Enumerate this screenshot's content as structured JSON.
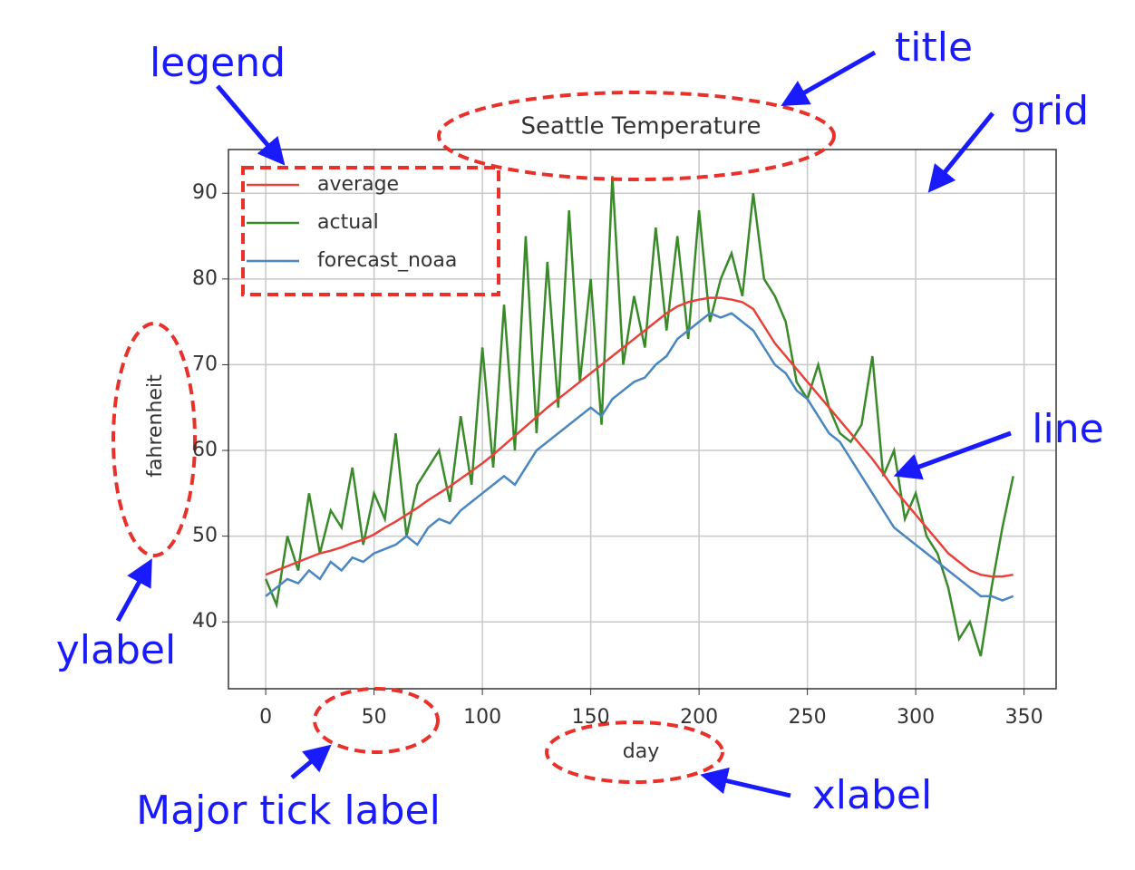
{
  "chart_data": {
    "type": "line",
    "title": "Seattle Temperature",
    "xlabel": "day",
    "ylabel": "fahrenheit",
    "x": [
      0,
      5,
      10,
      15,
      20,
      25,
      30,
      35,
      40,
      45,
      50,
      55,
      60,
      65,
      70,
      75,
      80,
      85,
      90,
      95,
      100,
      105,
      110,
      115,
      120,
      125,
      130,
      135,
      140,
      145,
      150,
      155,
      160,
      165,
      170,
      175,
      180,
      185,
      190,
      195,
      200,
      205,
      210,
      215,
      220,
      225,
      230,
      235,
      240,
      245,
      250,
      255,
      260,
      265,
      270,
      275,
      280,
      285,
      290,
      295,
      300,
      305,
      310,
      315,
      320,
      325,
      330,
      335,
      340,
      345
    ],
    "series": [
      {
        "name": "average",
        "color": "#e8413a",
        "values": [
          45.5,
          46,
          46.5,
          47,
          47.5,
          48,
          48.3,
          48.7,
          49.2,
          49.6,
          50.2,
          51,
          51.7,
          52.5,
          53.3,
          54.2,
          55,
          55.8,
          56.7,
          57.6,
          58.5,
          59.5,
          60.6,
          61.7,
          62.8,
          63.9,
          65,
          66,
          67,
          68,
          69,
          70,
          71,
          72,
          73,
          74,
          75,
          76,
          76.8,
          77.3,
          77.6,
          77.8,
          77.8,
          77.6,
          77.3,
          76.5,
          74.5,
          72.5,
          71,
          69.5,
          68,
          66.5,
          65,
          63.5,
          62,
          60.5,
          59,
          57.3,
          55.5,
          54,
          52.5,
          51,
          49.5,
          48,
          47,
          46,
          45.5,
          45.3,
          45.3,
          45.5
        ]
      },
      {
        "name": "actual",
        "color": "#3a8a2a",
        "values": [
          45,
          42,
          50,
          46,
          55,
          48,
          53,
          51,
          58,
          49,
          55,
          52,
          62,
          50,
          56,
          58,
          60,
          54,
          64,
          56,
          72,
          58,
          77,
          60,
          85,
          62,
          82,
          65,
          88,
          68,
          80,
          63,
          92,
          70,
          78,
          72,
          86,
          74,
          85,
          73,
          88,
          75,
          80,
          83,
          78,
          90,
          80,
          78,
          75,
          68,
          66,
          70,
          65,
          62,
          61,
          63,
          71,
          57,
          60,
          52,
          55,
          50,
          48,
          44,
          38,
          40,
          36,
          44,
          51,
          57
        ]
      },
      {
        "name": "forecast_noaa",
        "color": "#4a86c0",
        "values": [
          43,
          44,
          45,
          44.5,
          46,
          45,
          47,
          46,
          47.5,
          47,
          48,
          48.5,
          49,
          50,
          49,
          51,
          52,
          51.5,
          53,
          54,
          55,
          56,
          57,
          56,
          58,
          60,
          61,
          62,
          63,
          64,
          65,
          64,
          66,
          67,
          68,
          68.5,
          70,
          71,
          73,
          74,
          75,
          76,
          75.5,
          76,
          75,
          74,
          72,
          70,
          69,
          67,
          66,
          64,
          62,
          61,
          59,
          57,
          55,
          53,
          51,
          50,
          49,
          48,
          47,
          46,
          45,
          44,
          43,
          43,
          42.5,
          43
        ]
      }
    ],
    "xlim": [
      -17.2,
      364.8
    ],
    "ylim": [
      32.2,
      95.1
    ],
    "xticks": [
      0,
      50,
      100,
      150,
      200,
      250,
      300,
      350
    ],
    "yticks": [
      40,
      50,
      60,
      70,
      80,
      90
    ],
    "grid": true,
    "legend": "upper left",
    "annotations": [
      "legend",
      "title",
      "grid",
      "line",
      "ylabel",
      "Major tick label",
      "xlabel"
    ]
  }
}
